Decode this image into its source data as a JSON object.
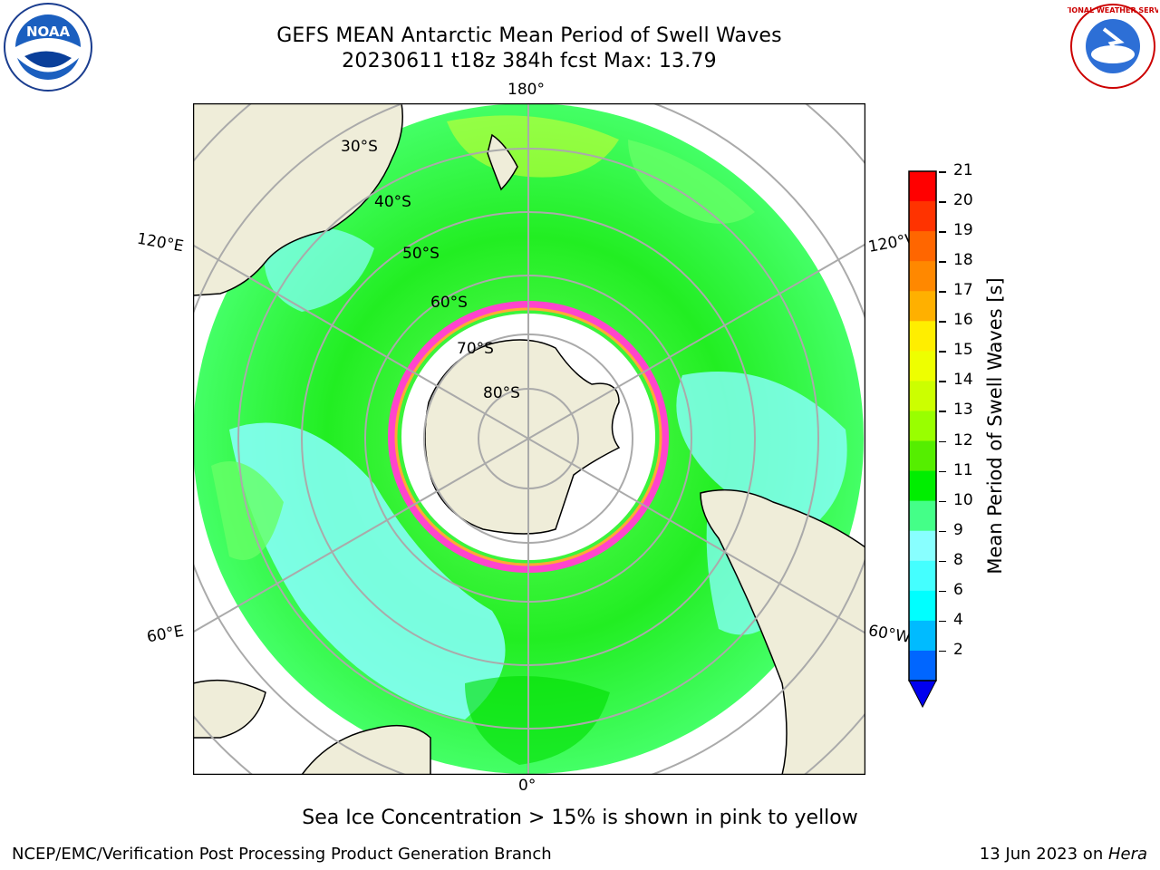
{
  "header": {
    "title_line1": "GEFS MEAN Antarctic Mean Period of Swell Waves",
    "title_line2": "20230611 t18z 384h fcst   Max: 13.79"
  },
  "map": {
    "projection": "south polar stereographic",
    "longitude_labels": [
      "180°",
      "0°",
      "120°E",
      "120°W",
      "60°E",
      "60°W"
    ],
    "latitude_labels": [
      "30°S",
      "40°S",
      "50°S",
      "60°S",
      "70°S",
      "80°S"
    ],
    "colors": {
      "land": "#efedd9",
      "ocean_green": "#00ee00",
      "ocean_light_green": "#66ff66",
      "ocean_cyan": "#88ffff",
      "sea_ice_pink": "#ff44cc",
      "sea_ice_orange": "#ffaa33",
      "grid": "#aaaaaa"
    }
  },
  "colorbar": {
    "label": "Mean Period of Swell Waves [s]",
    "ticks": [
      "21",
      "20",
      "19",
      "18",
      "17",
      "16",
      "15",
      "14",
      "13",
      "12",
      "11",
      "10",
      "9",
      "8",
      "6",
      "4",
      "2"
    ],
    "colors": [
      "#ff0000",
      "#ff3300",
      "#ff6600",
      "#ff8800",
      "#ffb000",
      "#ffee00",
      "#eeff00",
      "#ccff00",
      "#99ff00",
      "#55ee00",
      "#00ee00",
      "#44ff88",
      "#88ffff",
      "#44ffff",
      "#00ffff",
      "#00bbff",
      "#0066ff"
    ],
    "extend_color": "#0000ee"
  },
  "footer": {
    "note": "Sea Ice Concentration > 15% is shown in pink to yellow",
    "credit": "NCEP/EMC/Verification Post Processing Product Generation Branch",
    "date_prefix": "13 Jun 2023 on ",
    "machine": "Hera"
  },
  "logos": {
    "left_text": "NOAA",
    "right_text": "NATIONAL WEATHER SERVICE"
  }
}
